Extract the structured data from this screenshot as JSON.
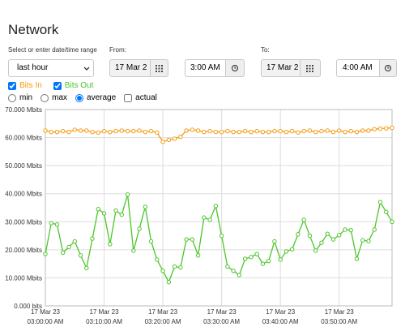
{
  "header": {
    "title": "Network"
  },
  "range": {
    "label": "Select or enter date/time range",
    "preset": "last hour",
    "from_label": "From:",
    "from_date": "17 Mar 2",
    "from_time": "3:00 AM",
    "to_label": "To:",
    "to_date": "17 Mar 2",
    "to_time": "4:00 AM"
  },
  "options": {
    "modes": [
      "min",
      "max",
      "average"
    ],
    "selected_mode": "average",
    "extra": "actual"
  },
  "chart_data": {
    "type": "line",
    "x": [
      "03:00",
      "03:01",
      "03:02",
      "03:03",
      "03:04",
      "03:05",
      "03:06",
      "03:07",
      "03:08",
      "03:09",
      "03:10",
      "03:11",
      "03:12",
      "03:13",
      "03:14",
      "03:15",
      "03:16",
      "03:17",
      "03:18",
      "03:19",
      "03:20",
      "03:21",
      "03:22",
      "03:23",
      "03:24",
      "03:25",
      "03:26",
      "03:27",
      "03:28",
      "03:29",
      "03:30",
      "03:31",
      "03:32",
      "03:33",
      "03:34",
      "03:35",
      "03:36",
      "03:37",
      "03:38",
      "03:39",
      "03:40",
      "03:41",
      "03:42",
      "03:43",
      "03:44",
      "03:45",
      "03:46",
      "03:47",
      "03:48",
      "03:49",
      "03:50",
      "03:51",
      "03:52",
      "03:53",
      "03:54",
      "03:55",
      "03:56",
      "03:57",
      "03:58",
      "03:59"
    ],
    "xlim": [
      "03:00",
      "03:59"
    ],
    "xticks": [
      {
        "value": "03:00",
        "label": [
          "17 Mar 23",
          "03:00:00 AM"
        ]
      },
      {
        "value": "03:10",
        "label": [
          "17 Mar 23",
          "03:10:00 AM"
        ]
      },
      {
        "value": "03:20",
        "label": [
          "17 Mar 23",
          "03:20:00 AM"
        ]
      },
      {
        "value": "03:30",
        "label": [
          "17 Mar 23",
          "03:30:00 AM"
        ]
      },
      {
        "value": "03:40",
        "label": [
          "17 Mar 23",
          "03:40:00 AM"
        ]
      },
      {
        "value": "03:50",
        "label": [
          "17 Mar 23",
          "03:50:00 AM"
        ]
      }
    ],
    "ylim": [
      0,
      70
    ],
    "yticks": [
      {
        "value": 0,
        "label": "0.000 bits"
      },
      {
        "value": 10,
        "label": "10.000 Mbits"
      },
      {
        "value": 20,
        "label": "20.000 Mbits"
      },
      {
        "value": 30,
        "label": "30.000 Mbits"
      },
      {
        "value": 40,
        "label": "40.000 Mbits"
      },
      {
        "value": 50,
        "label": "50.000 Mbits"
      },
      {
        "value": 60,
        "label": "60.000 Mbits"
      },
      {
        "value": 70,
        "label": "70.000 Mbits"
      }
    ],
    "grid": true,
    "series": [
      {
        "name": "Bits In",
        "color": "#f39c12",
        "values": [
          62.5,
          62,
          62,
          62.3,
          62,
          62.8,
          62.5,
          62.5,
          62,
          61.8,
          62.3,
          62,
          62.3,
          62.5,
          62.3,
          62.3,
          62.5,
          62,
          62.3,
          61.8,
          58.5,
          59.2,
          59.6,
          60.3,
          62.5,
          62.8,
          62.5,
          62,
          62.3,
          62,
          62,
          62.3,
          62,
          62,
          62.3,
          62,
          62.3,
          62,
          62,
          62.3,
          62.3,
          62,
          62.3,
          61.8,
          62.3,
          62.5,
          62,
          62.3,
          62.5,
          62,
          62.5,
          62,
          62.3,
          62,
          62.5,
          62.5,
          63,
          63.2,
          63.3,
          63.5
        ]
      },
      {
        "name": "Bits Out",
        "color": "#4cc52a",
        "values": [
          18.5,
          29.5,
          29,
          19,
          21,
          23,
          18,
          13.5,
          24,
          34.5,
          33,
          22,
          34,
          32.5,
          39.7,
          19.7,
          27.5,
          35.3,
          23,
          16.5,
          12.5,
          8.5,
          14,
          13.7,
          23.7,
          23.7,
          18,
          31.5,
          30.7,
          35.6,
          25,
          14,
          12.5,
          11,
          16.8,
          17.4,
          18.5,
          15,
          16,
          23,
          16.5,
          19.4,
          20.2,
          25.5,
          30.7,
          25,
          19.7,
          22.5,
          25.7,
          23.7,
          25.2,
          27.2,
          27,
          16.8,
          23.4,
          23.1,
          27.2,
          37,
          33.5,
          30
        ]
      }
    ]
  }
}
